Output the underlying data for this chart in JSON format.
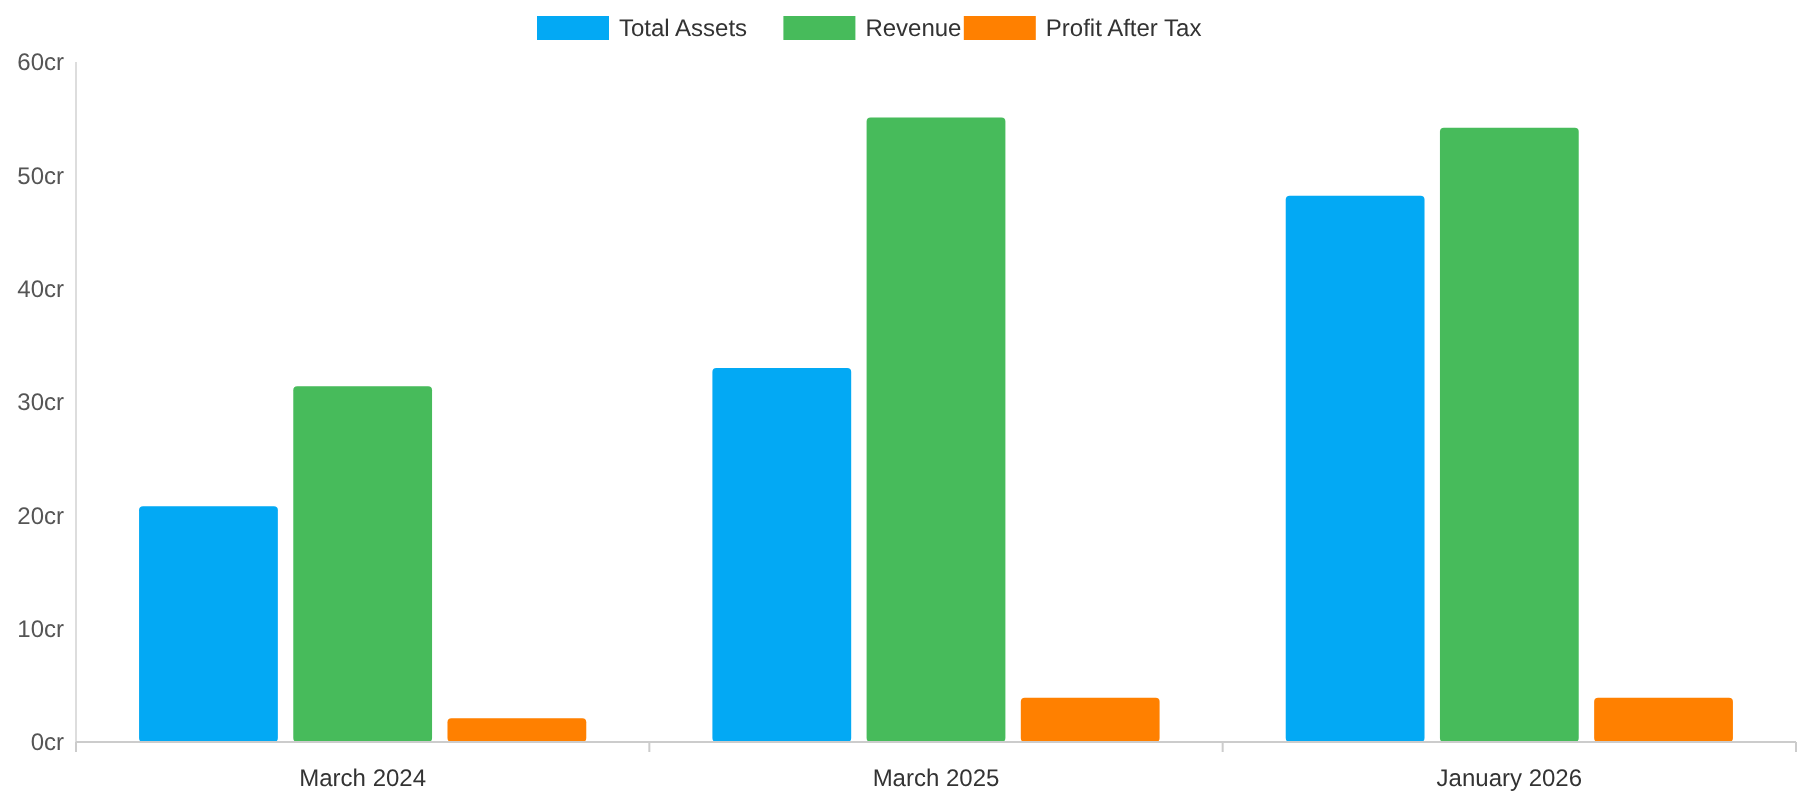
{
  "chart_data": {
    "type": "bar",
    "categories": [
      "March 2024",
      "March 2025",
      "January 2026"
    ],
    "series": [
      {
        "name": "Total Assets",
        "color": "#03a9f4",
        "values": [
          20.8,
          33.0,
          48.2
        ]
      },
      {
        "name": "Revenue",
        "color": "#47bb5b",
        "values": [
          31.4,
          55.1,
          54.2
        ]
      },
      {
        "name": "Profit After Tax",
        "color": "#ff8000",
        "values": [
          2.1,
          3.9,
          3.9
        ]
      }
    ],
    "ylim": [
      0,
      60
    ],
    "yticks": [
      {
        "value": 0,
        "label": "0cr"
      },
      {
        "value": 10,
        "label": "10cr"
      },
      {
        "value": 20,
        "label": "20cr"
      },
      {
        "value": 30,
        "label": "30cr"
      },
      {
        "value": 40,
        "label": "40cr"
      },
      {
        "value": 50,
        "label": "50cr"
      },
      {
        "value": 60,
        "label": "60cr"
      }
    ],
    "legend": "top",
    "grid": false
  }
}
